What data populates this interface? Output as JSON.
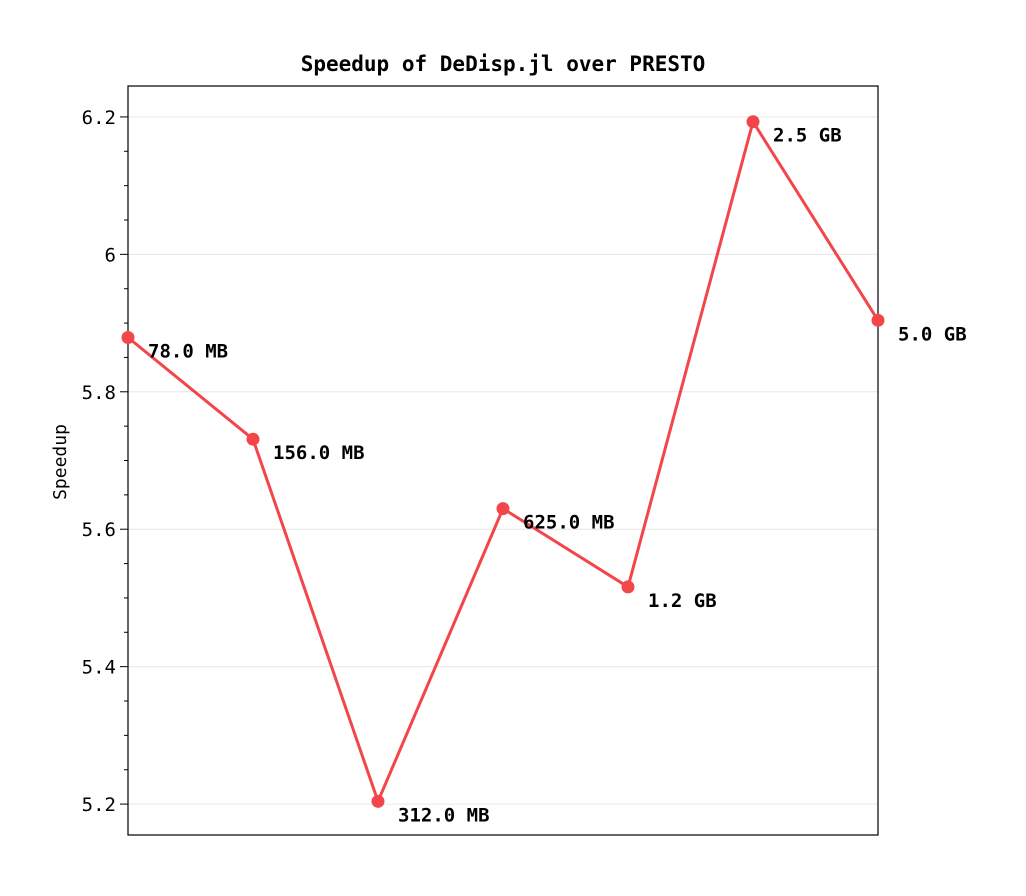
{
  "chart_data": {
    "type": "line",
    "title": "Speedup of DeDisp.jl over PRESTO",
    "xlabel": "",
    "ylabel": "Speedup",
    "ylim": [
      5.155,
      6.245
    ],
    "y_ticks": [
      5.2,
      5.4,
      5.6,
      5.8,
      6.0,
      6.2
    ],
    "y_tick_labels": [
      "5.2",
      "5.4",
      "5.6",
      "5.8",
      "6",
      "6.2"
    ],
    "y_minor_step": 0.05,
    "grid": true,
    "line_color": "#f2464b",
    "series": [
      {
        "x": [
          0,
          1,
          2,
          3,
          4,
          5,
          6
        ],
        "values": [
          5.879,
          5.731,
          5.204,
          5.63,
          5.516,
          6.193,
          5.904
        ],
        "labels": [
          "78.0 MB",
          "156.0 MB",
          "312.0 MB",
          "625.0 MB",
          "1.2 GB",
          "2.5 GB",
          "5.0 GB"
        ]
      }
    ]
  }
}
